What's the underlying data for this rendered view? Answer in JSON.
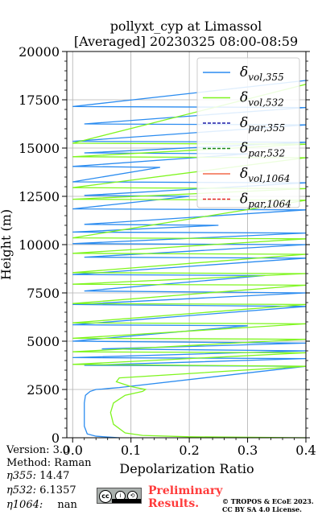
{
  "chart_data": {
    "type": "line",
    "title": "pollyxt_cyp at Limassol",
    "subtitle": "[Averaged] 20230325 08:00-08:59",
    "xlabel": "Depolarization Ratio",
    "ylabel": "Height (m)",
    "xlim": [
      -0.01,
      0.4
    ],
    "ylim": [
      0,
      20000
    ],
    "xticks": [
      "0.0",
      "0.1",
      "0.2",
      "0.3",
      "0.4"
    ],
    "xtick_values": [
      0,
      0.1,
      0.2,
      0.3,
      0.4
    ],
    "yticks": [
      "0",
      "2500",
      "5000",
      "7500",
      "10000",
      "12500",
      "15000",
      "17500",
      "20000"
    ],
    "ytick_values": [
      0,
      2500,
      5000,
      7500,
      10000,
      12500,
      15000,
      17500,
      20000
    ],
    "grid": true,
    "legend_position": "top-right",
    "series": [
      {
        "name": "δvol,355",
        "label_main": "δ",
        "label_sub": "vol,355",
        "color": "#2b8cf0",
        "style": "solid",
        "x": [
          0.08,
          0.04,
          0.025,
          0.02,
          0.02,
          0.02,
          0.022,
          0.03,
          0.04,
          0.05,
          0.06,
          0.08,
          0.4,
          0.02,
          0.4,
          0.0,
          0.4,
          0.05,
          0.4,
          0.0,
          0.3,
          0.0,
          0.4,
          0.0,
          0.4,
          0.02,
          0.33,
          0.0,
          0.4,
          0.02,
          0.4,
          0.0,
          0.4,
          0.0,
          0.25,
          0.02,
          0.4,
          0.0,
          0.2,
          0.02,
          0.4,
          0.0,
          0.15,
          0.0,
          0.3,
          0.02,
          0.4,
          0.0,
          0.4,
          0.02,
          0.4,
          0.0,
          0.4
        ],
        "y": [
          0,
          80,
          200,
          600,
          1200,
          1800,
          2200,
          2400,
          2500,
          2520,
          2550,
          2600,
          3700,
          3750,
          4100,
          4150,
          4500,
          4600,
          4900,
          5000,
          5800,
          5850,
          6800,
          6900,
          7500,
          7600,
          8400,
          8450,
          9300,
          9350,
          10000,
          10050,
          10600,
          10650,
          11000,
          11050,
          11800,
          11850,
          12500,
          12550,
          13200,
          13250,
          14000,
          14050,
          14700,
          14750,
          15300,
          15350,
          16200,
          16250,
          17100,
          17150,
          18500
        ]
      },
      {
        "name": "δvol,532",
        "label_main": "δ",
        "label_sub": "vol,532",
        "color": "#7ff51f",
        "style": "solid",
        "x": [
          0.4,
          0.2,
          0.12,
          0.09,
          0.07,
          0.065,
          0.07,
          0.09,
          0.12,
          0.125,
          0.1,
          0.075,
          0.08,
          0.4,
          0.0,
          0.4,
          0.0,
          0.4,
          0.0,
          0.4,
          0.0,
          0.4,
          0.0,
          0.4,
          0.0,
          0.4,
          0.0,
          0.4,
          0.0,
          0.4,
          0.0,
          0.4,
          0.0,
          0.4,
          0.0,
          0.4,
          0.0,
          0.4,
          0.0,
          0.4
        ],
        "y": [
          0,
          50,
          120,
          250,
          700,
          1300,
          1800,
          2200,
          2400,
          2500,
          2650,
          2900,
          3100,
          3700,
          3800,
          4400,
          4450,
          5100,
          5150,
          5900,
          5950,
          6900,
          6950,
          7900,
          7950,
          8500,
          8550,
          9500,
          9550,
          10300,
          10350,
          12300,
          12350,
          12900,
          12950,
          14500,
          14550,
          15200,
          15250,
          18300
        ]
      },
      {
        "name": "δpar,355",
        "label_main": "δ",
        "label_sub": "par,355",
        "color": "#1a1aa8",
        "style": "dashed",
        "x": [],
        "y": []
      },
      {
        "name": "δpar,532",
        "label_main": "δ",
        "label_sub": "par,532",
        "color": "#1b8a1b",
        "style": "dashed",
        "x": [],
        "y": []
      },
      {
        "name": "δvol,1064",
        "label_main": "δ",
        "label_sub": "vol,1064",
        "color": "#f26a4a",
        "style": "solid",
        "x": [],
        "y": []
      },
      {
        "name": "δpar,1064",
        "label_main": "δ",
        "label_sub": "par,1064",
        "color": "#e8232a",
        "style": "dashed",
        "x": [],
        "y": []
      }
    ]
  },
  "info": {
    "version": "Version: 3.0",
    "method": "Method: Raman",
    "eta355_label": "η355:",
    "eta355_value": "14.47",
    "eta532_label": "η532:",
    "eta532_value": "6.1357",
    "eta1064_label": "η1064:",
    "eta1064_value": "nan"
  },
  "footer": {
    "license_badge": "cc by sa",
    "preliminary_line1": "Preliminary",
    "preliminary_line2": "Results.",
    "copyright_line1": "© TROPOS & ECoE 2023.",
    "copyright_line2": "CC BY SA 4.0 License."
  }
}
